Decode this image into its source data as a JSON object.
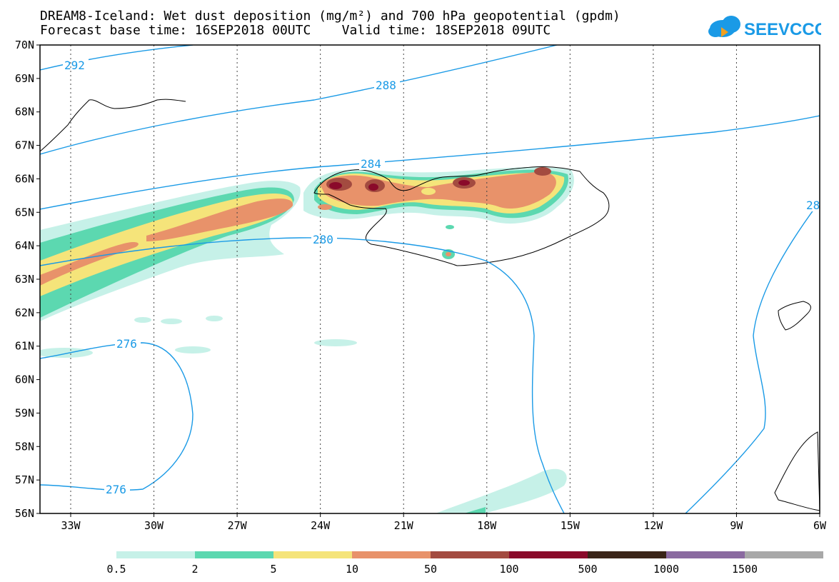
{
  "title": {
    "line1": "DREAM8-Iceland: Wet dust deposition (mg/m²) and 700 hPa geopotential (gpdm)",
    "line2": "Forecast base time: 16SEP2018 00UTC    Valid time: 18SEP2018 09UTC"
  },
  "logo": {
    "text": "SEEVCCC",
    "color": "#1a9ae6"
  },
  "map": {
    "lat_labels": [
      "70N",
      "69N",
      "68N",
      "67N",
      "66N",
      "65N",
      "64N",
      "63N",
      "62N",
      "61N",
      "60N",
      "59N",
      "58N",
      "57N",
      "56N"
    ],
    "lon_labels": [
      "33W",
      "30W",
      "27W",
      "24W",
      "21W",
      "18W",
      "15W",
      "12W",
      "9W",
      "6W"
    ],
    "contour_labels": [
      "292",
      "288",
      "284",
      "280",
      "276",
      "276",
      "28"
    ],
    "contour_color": "#1a9ae6"
  },
  "legend": {
    "colors": [
      "#c6f1e8",
      "#5cd8b0",
      "#f5e47a",
      "#e8926a",
      "#a34b40",
      "#8a0a2a",
      "#3a2418",
      "#8a6aa0",
      "#a8a8a8"
    ],
    "labels": [
      "0.5",
      "2",
      "5",
      "10",
      "50",
      "100",
      "500",
      "1000",
      "1500"
    ]
  }
}
